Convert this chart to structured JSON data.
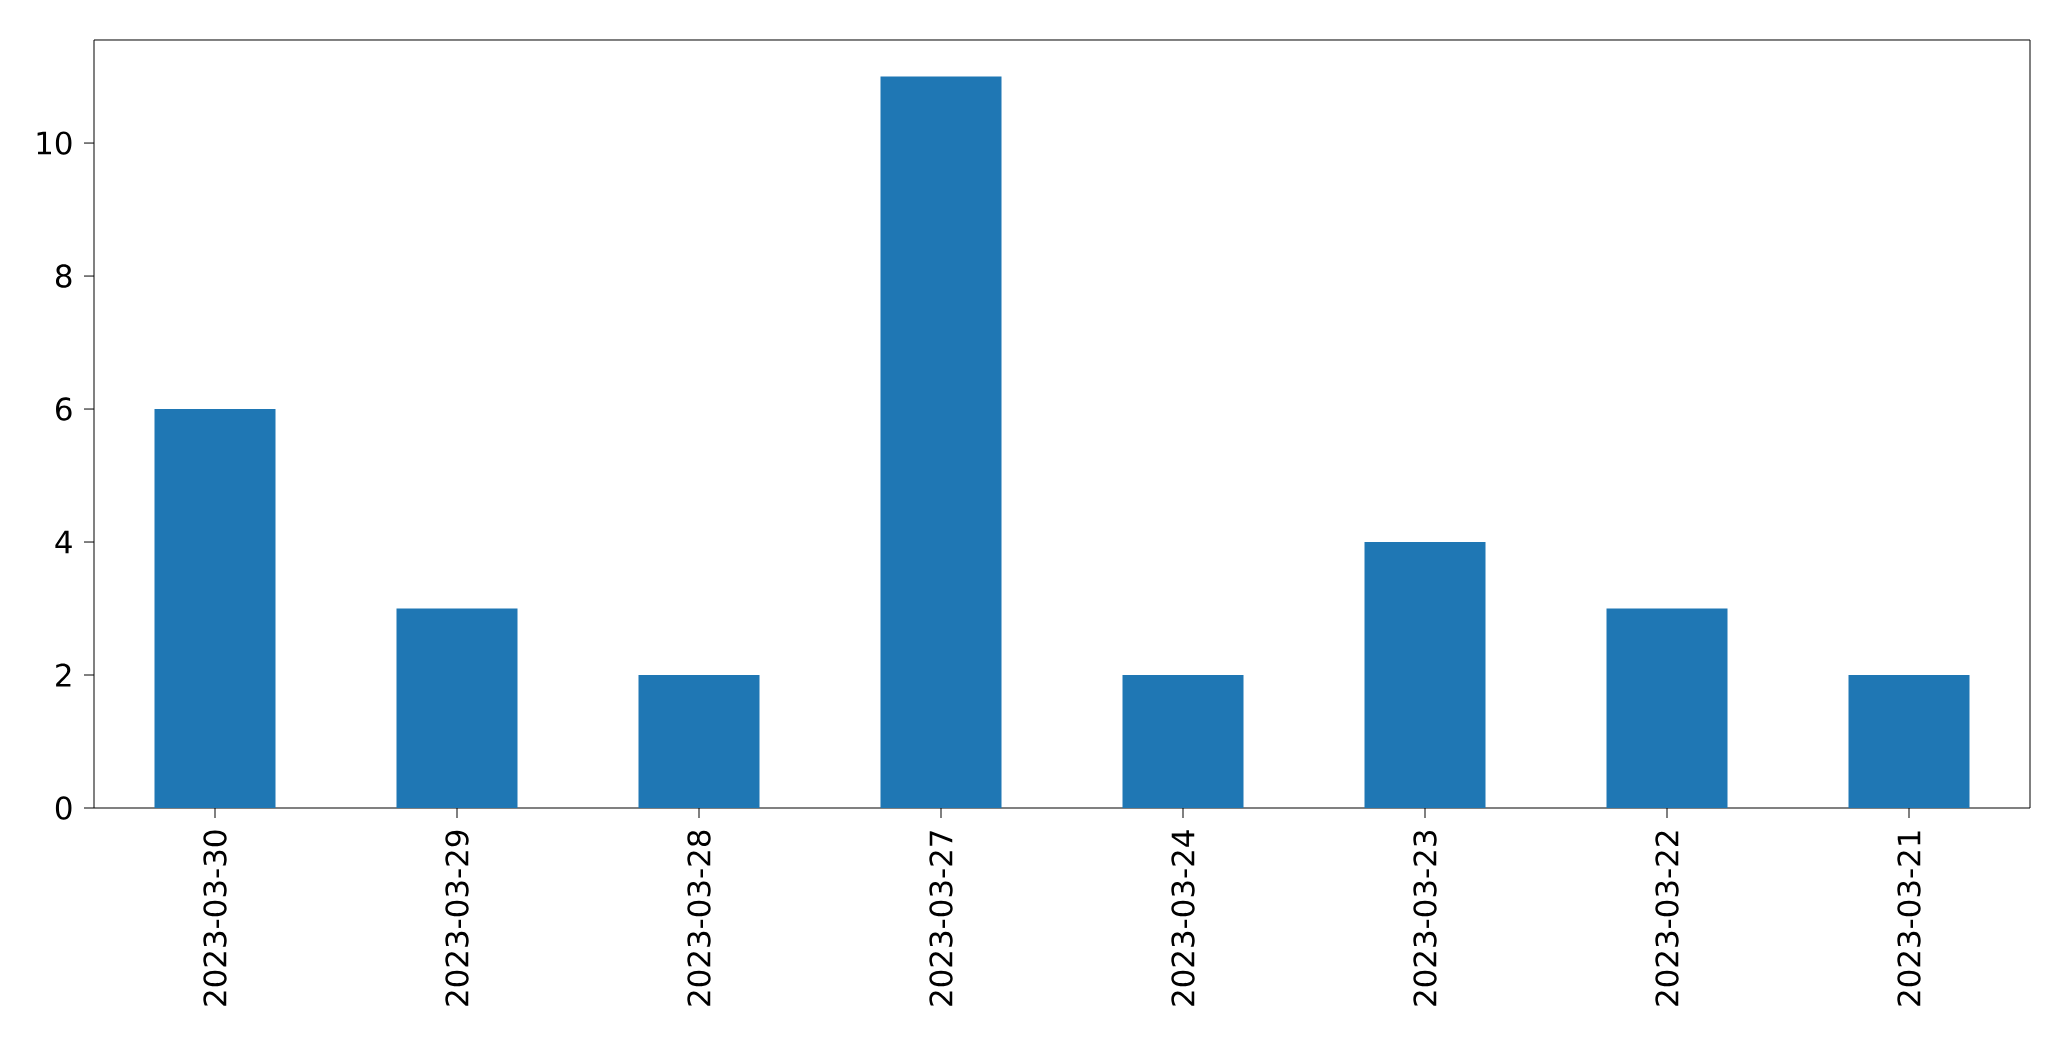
{
  "chart_data": {
    "type": "bar",
    "categories": [
      "2023-03-30",
      "2023-03-29",
      "2023-03-28",
      "2023-03-27",
      "2023-03-24",
      "2023-03-23",
      "2023-03-22",
      "2023-03-21"
    ],
    "values": [
      6,
      3,
      2,
      11,
      2,
      4,
      3,
      2
    ],
    "color": "#1f77b4",
    "ylim": [
      0,
      11.55
    ],
    "yticks": [
      0,
      2,
      4,
      6,
      8,
      10
    ]
  }
}
